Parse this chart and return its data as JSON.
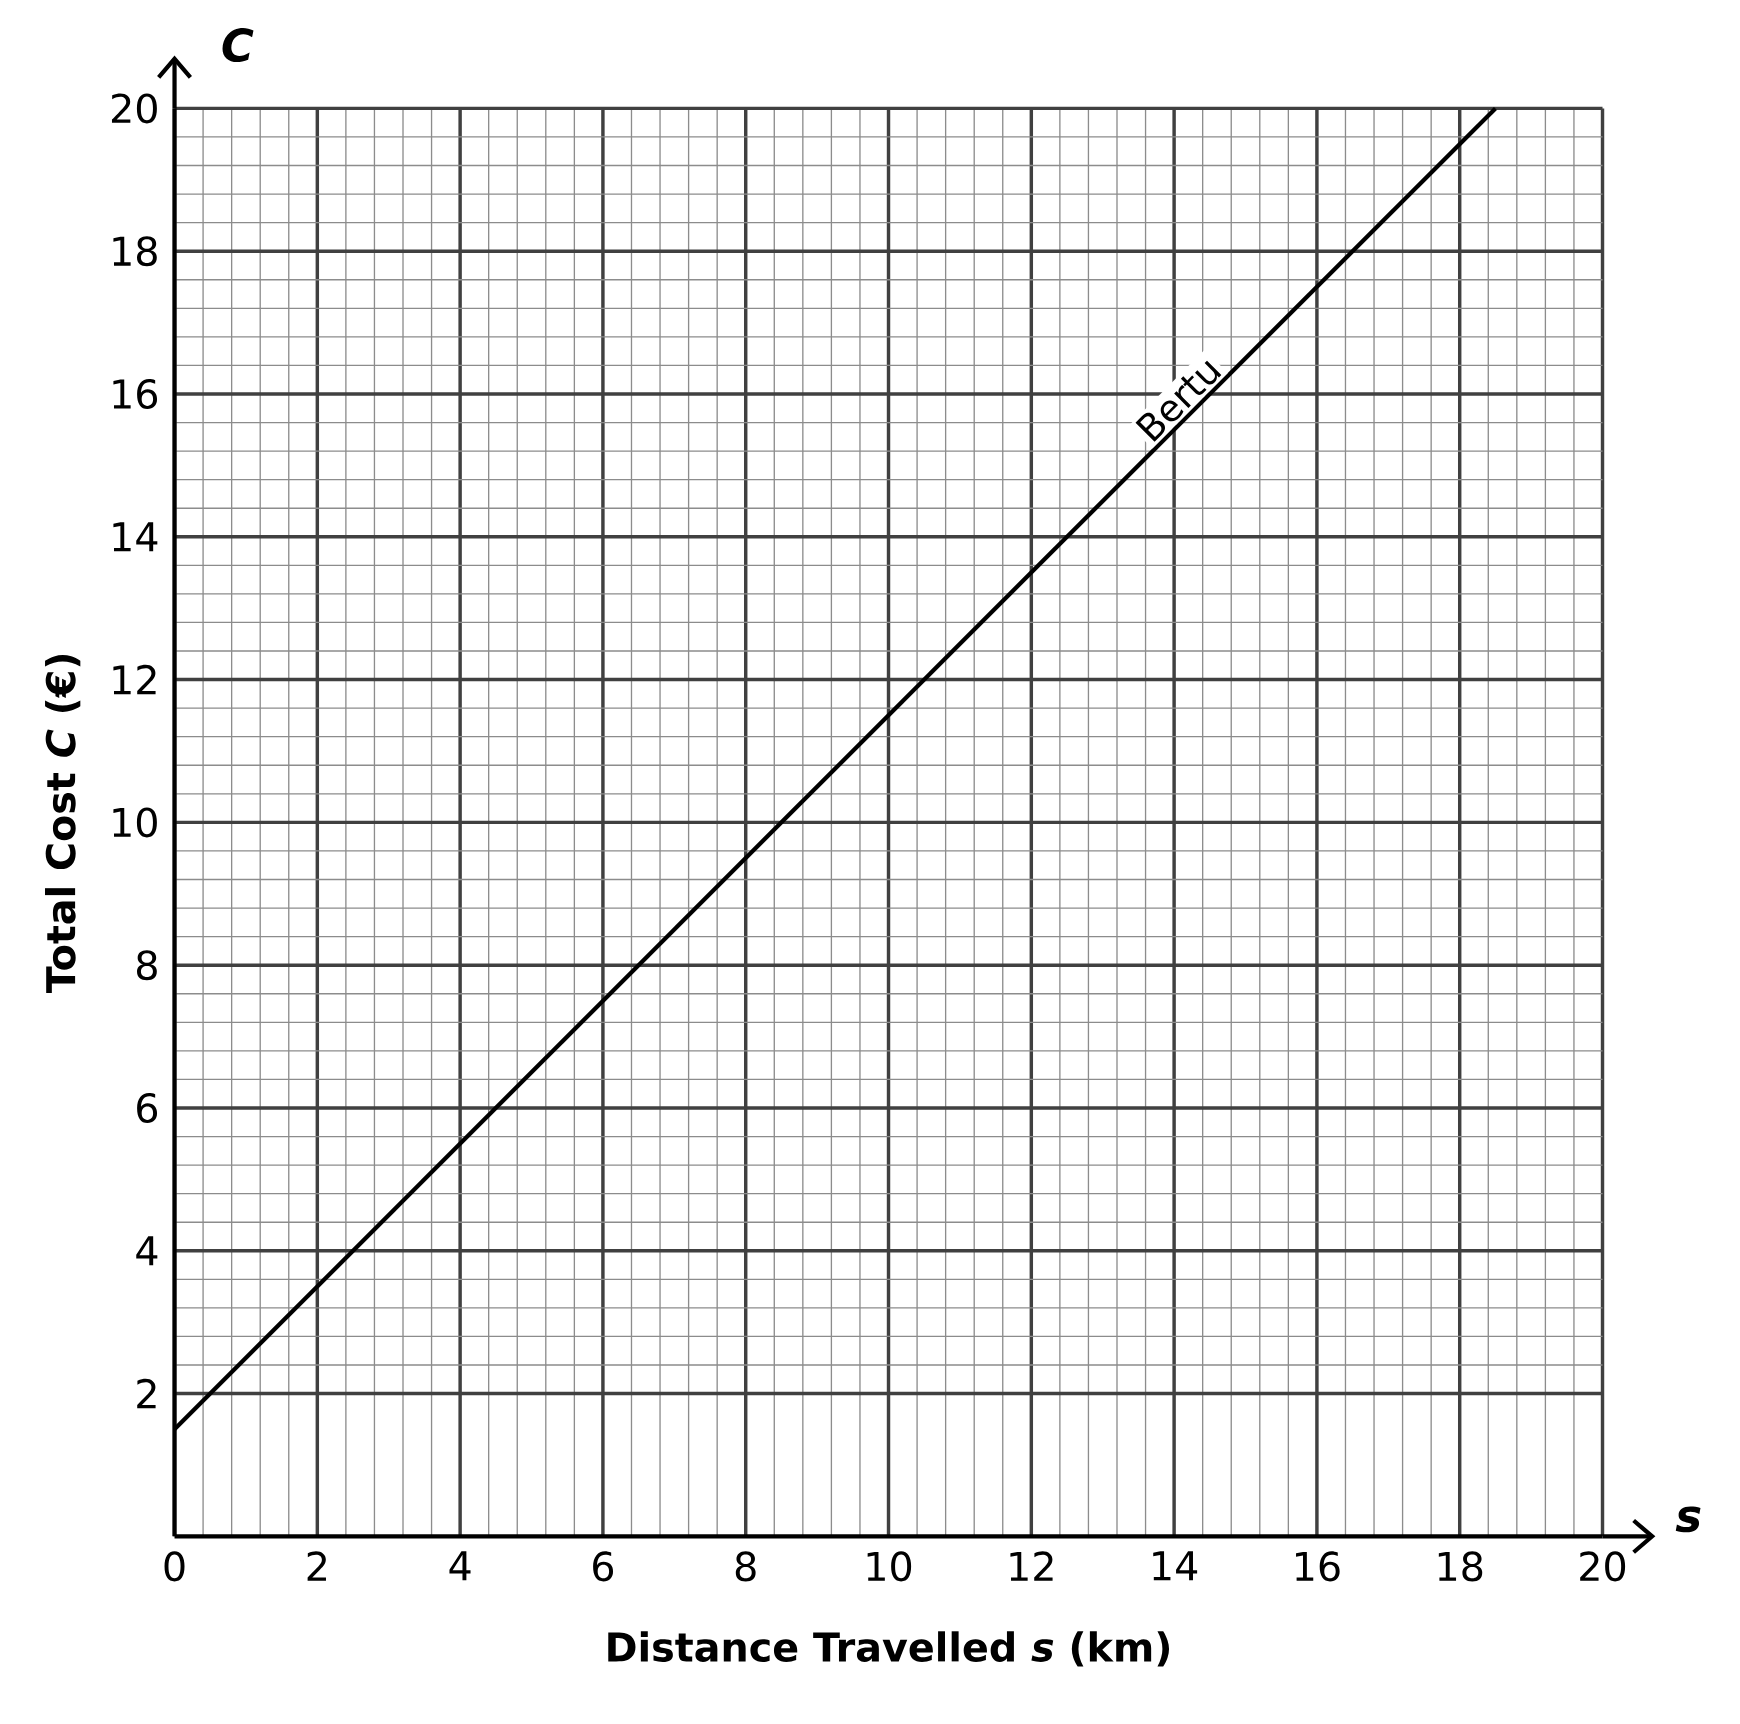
{
  "chart_data": {
    "type": "line",
    "xlabel": "Distance Travelled  *s* (km)",
    "ylabel": "Total Cost  *C* (€)",
    "annotations": [
      "*C*",
      "*s*"
    ],
    "xlim": [
      0,
      20
    ],
    "ylim": [
      0,
      20
    ],
    "xticks": [
      0,
      2,
      4,
      6,
      8,
      10,
      12,
      14,
      16,
      18,
      20
    ],
    "yticks": [
      2,
      4,
      6,
      8,
      10,
      12,
      14,
      16,
      18,
      20
    ],
    "grid": true,
    "legend": false,
    "series": [
      {
        "name": "Bertu",
        "color": "#000000",
        "x": [
          0,
          18.5
        ],
        "values": [
          1.5,
          20
        ]
      }
    ]
  }
}
